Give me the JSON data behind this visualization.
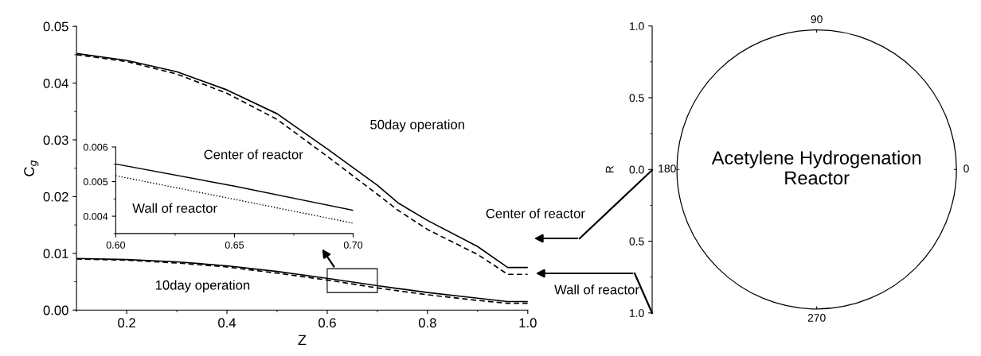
{
  "chart_data": [
    {
      "type": "line",
      "xlabel": "Z",
      "ylabel": "C$_{g}$",
      "xlim": [
        0.1,
        1.0
      ],
      "ylim": [
        0,
        0.05
      ],
      "xticks": [
        0.2,
        0.4,
        0.6,
        0.8,
        {
          "value": 1.0,
          "label": "1.0"
        }
      ],
      "yticks": [
        {
          "value": 0,
          "label": "0.00"
        },
        0.01,
        0.02,
        0.03,
        0.04,
        0.05
      ],
      "x": [
        0.1,
        0.2,
        0.3,
        0.4,
        0.5,
        0.6,
        0.7,
        0.741,
        0.8,
        0.9,
        0.96,
        1.0
      ],
      "series": [
        {
          "color": "#000000",
          "line_style": "solid",
          "values": [
            0.0452,
            0.044,
            0.042,
            0.0388,
            0.0346,
            0.0284,
            0.022,
            0.0189,
            0.0158,
            0.0112,
            0.0075,
            0.0075
          ]
        },
        {
          "color": "#000000",
          "line_style": "dashed",
          "values": [
            0.045,
            0.0438,
            0.0416,
            0.0382,
            0.0336,
            0.0271,
            0.0204,
            0.0176,
            0.0142,
            0.0098,
            0.0063,
            0.0063
          ]
        },
        {
          "color": "#000000",
          "line_style": "solid",
          "values": [
            0.0091,
            0.0089,
            0.0085,
            0.0078,
            0.0068,
            0.0056,
            0.0043,
            0.0038,
            0.0031,
            0.0021,
            0.0015,
            0.0015
          ]
        },
        {
          "color": "#000000",
          "line_style": "dashed",
          "values": [
            0.009,
            0.0088,
            0.0083,
            0.0076,
            0.0065,
            0.0053,
            0.0039,
            0.0034,
            0.0027,
            0.0017,
            0.0012,
            0.0012
          ]
        }
      ],
      "annotations": [
        "50day operation",
        "10day operation",
        "Center of reactor",
        "Wall of reactor"
      ]
    },
    {
      "type": "line",
      "xlim": [
        0.6,
        0.7
      ],
      "ylim": [
        0.0035,
        0.006
      ],
      "xticks": [
        {
          "value": 0.6,
          "label": "0.60"
        },
        0.65,
        {
          "value": 0.7,
          "label": "0.70"
        }
      ],
      "yticks": [
        0.004,
        0.005,
        0.006
      ],
      "x": [
        0.6,
        0.65,
        0.7
      ],
      "series": [
        {
          "color": "#000000",
          "line_style": "solid",
          "values": [
            0.00551,
            0.00487,
            0.00417
          ]
        },
        {
          "color": "#000000",
          "line_style": "dotted",
          "values": [
            0.00517,
            0.00449,
            0.0038
          ]
        }
      ],
      "annotations": [
        "Center of reactor",
        "Wall of reactor"
      ]
    },
    {
      "type": "other",
      "ylabel": "R",
      "annotations": [
        "Acetylene Hydrogenation\nReactor",
        "1.0",
        "0.5",
        "0.0",
        "0.5",
        "1.0",
        "0",
        "90",
        "180",
        "270"
      ]
    }
  ]
}
